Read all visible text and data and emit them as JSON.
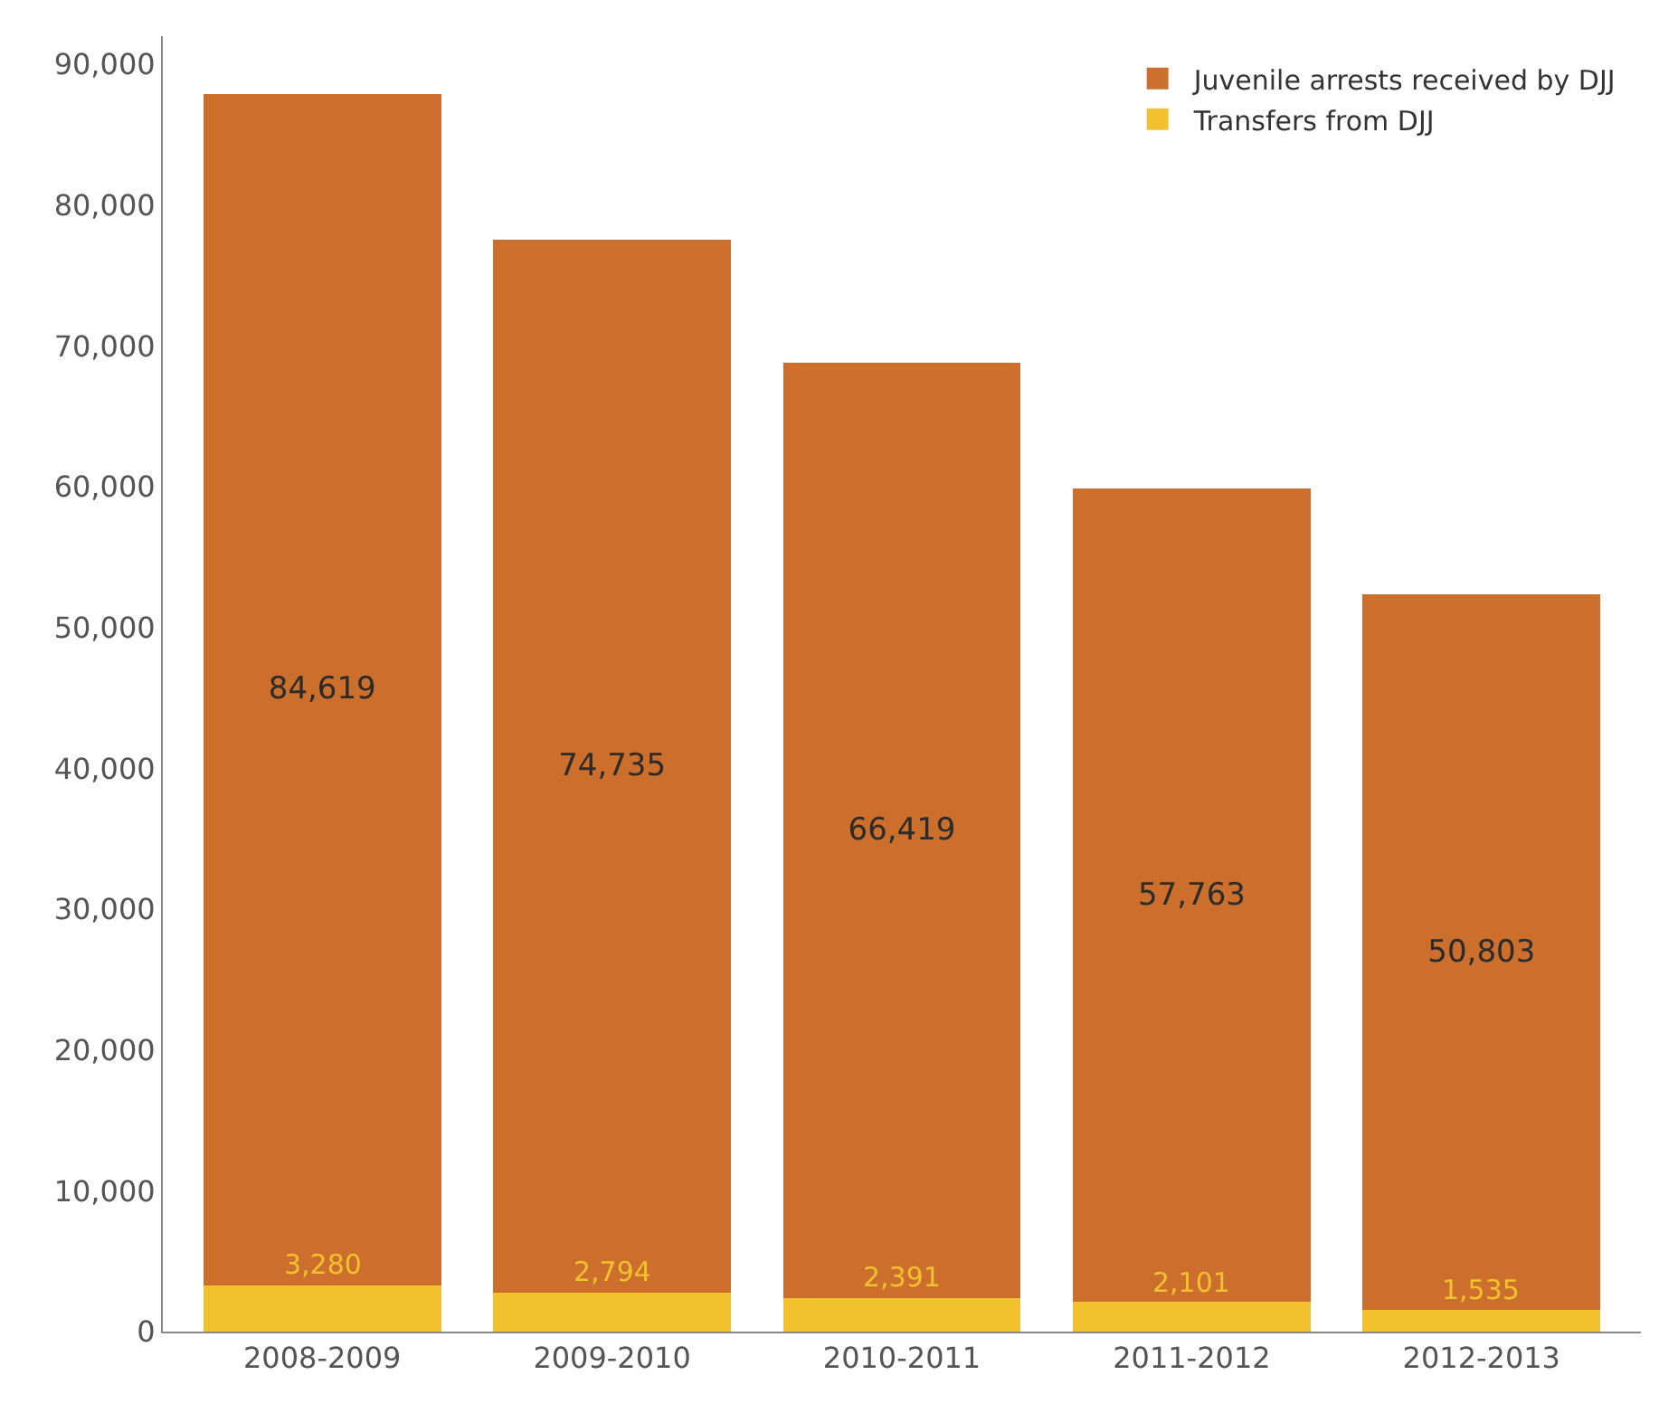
{
  "chart_data": {
    "type": "bar",
    "stacked": true,
    "categories": [
      "2008-2009",
      "2009-2010",
      "2010-2011",
      "2011-2012",
      "2012-2013"
    ],
    "series": [
      {
        "name": "Transfers from DJJ",
        "color": "#f2c12e",
        "values": [
          3280,
          2794,
          2391,
          2101,
          1535
        ],
        "value_labels": [
          "3,280",
          "2,794",
          "2,391",
          "2,101",
          "1,535"
        ]
      },
      {
        "name": "Juvenile arrests received by DJJ",
        "color": "#cc6f2d",
        "values": [
          84619,
          74735,
          66419,
          57763,
          50803
        ],
        "value_labels": [
          "84,619",
          "74,735",
          "66,419",
          "57,763",
          "50,803"
        ]
      }
    ],
    "ylim": [
      0,
      92000
    ],
    "yticks": [
      {
        "value": 0,
        "label": "0"
      },
      {
        "value": 10000,
        "label": "10,000"
      },
      {
        "value": 20000,
        "label": "20,000"
      },
      {
        "value": 30000,
        "label": "30,000"
      },
      {
        "value": 40000,
        "label": "40,000"
      },
      {
        "value": 50000,
        "label": "50,000"
      },
      {
        "value": 60000,
        "label": "60,000"
      },
      {
        "value": 70000,
        "label": "70,000"
      },
      {
        "value": 80000,
        "label": "80,000"
      },
      {
        "value": 90000,
        "label": "90,000"
      }
    ],
    "grid": false,
    "legend": "top right"
  }
}
